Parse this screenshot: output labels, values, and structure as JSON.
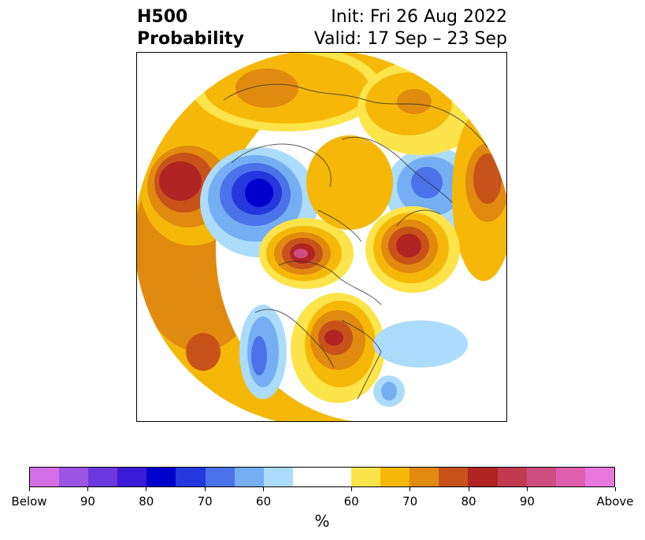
{
  "header": {
    "title_line1": "H500",
    "title_line2": "Probability",
    "init_text": "Init: Fri 26 Aug 2022",
    "valid_text": "Valid: 17 Sep – 23 Sep"
  },
  "map": {
    "projection": "north-polar-stereographic",
    "anomaly_regions": [
      {
        "region": "north-pacific",
        "category": "Above",
        "peak_percent": 80
      },
      {
        "region": "western-canada-alaska-west",
        "category": "Below",
        "peak_percent": 80
      },
      {
        "region": "greenland-arctic",
        "category": "Above",
        "peak_percent": 90
      },
      {
        "region": "eastern-europe-russia",
        "category": "Above",
        "peak_percent": 80
      },
      {
        "region": "central-north-america",
        "category": "Above",
        "peak_percent": 80
      },
      {
        "region": "western-united-states",
        "category": "Below",
        "peak_percent": 70
      },
      {
        "region": "siberia",
        "category": "Below",
        "peak_percent": 70
      },
      {
        "region": "north-atlantic",
        "category": "Below",
        "peak_percent": 60
      }
    ]
  },
  "colorbar": {
    "colors": [
      "#d56fe8",
      "#9b55e3",
      "#6b37de",
      "#3a1bd8",
      "#0000cc",
      "#2438dd",
      "#4b72e8",
      "#76aef3",
      "#acdcfb",
      "#ffffff",
      "#ffffff",
      "#fde44a",
      "#f5b808",
      "#e08a0f",
      "#c8531a",
      "#b02424",
      "#c13a4e",
      "#cf4e80",
      "#dd5fae",
      "#e878de"
    ],
    "tick_labels": [
      "Below",
      "90",
      "80",
      "70",
      "60",
      "60",
      "70",
      "80",
      "90",
      "Above"
    ],
    "unit": "%"
  }
}
